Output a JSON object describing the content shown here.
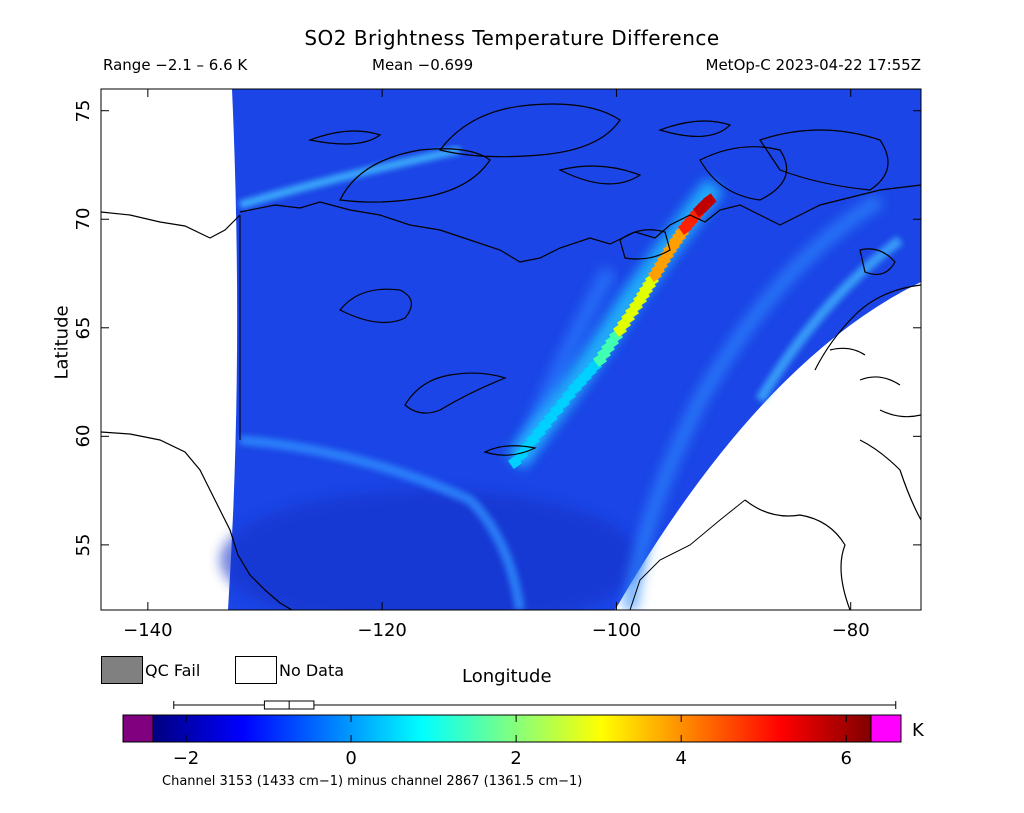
{
  "title": "SO2 Brightness Temperature Difference",
  "stats": {
    "range": "Range −2.1 – 6.6 K",
    "mean": "Mean −0.699",
    "satellite_time": "MetOp-C 2023-04-22 17:55Z"
  },
  "axes": {
    "xlabel": "Longitude",
    "ylabel": "Latitude",
    "xticks": [
      -140,
      -120,
      -100,
      -80
    ],
    "yticks": [
      55,
      60,
      65,
      70,
      75
    ],
    "xtick_labels": [
      "−140",
      "−120",
      "−100",
      "−80"
    ],
    "ytick_labels": [
      "55",
      "60",
      "65",
      "70",
      "75"
    ],
    "xlim": [
      -144,
      -74
    ],
    "ylim": [
      52,
      76
    ]
  },
  "legend": {
    "qc_fail_label": "QC Fail",
    "no_data_label": "No Data",
    "qc_fail_color": "#808080",
    "no_data_color": "#ffffff"
  },
  "colorbar": {
    "unit": "K",
    "range": [
      -2.4,
      6.3
    ],
    "tick_values": [
      -2,
      0,
      2,
      4,
      6
    ],
    "tick_labels": [
      "−2",
      "0",
      "2",
      "4",
      "6"
    ],
    "under_color": "#800080",
    "over_color": "#ff00ff",
    "stops": [
      "#000080",
      "#0000ff",
      "#0080ff",
      "#00ffff",
      "#80ff80",
      "#ffff00",
      "#ff8000",
      "#ff0000",
      "#800000"
    ],
    "boxplot": {
      "min": -2.1,
      "q1": -1.05,
      "median": -0.75,
      "q3": -0.45,
      "max": 6.6
    }
  },
  "footnote": "Channel 3153 (1433 cm−1) minus channel 2867 (1361.5 cm−1)",
  "map": {
    "background_value_color": "#1a3ee8",
    "plume_colors": [
      "#00d0ff",
      "#40ffb0",
      "#e0ff00",
      "#ffa000",
      "#ff2000",
      "#c00000"
    ],
    "coastline_color": "#000000"
  }
}
